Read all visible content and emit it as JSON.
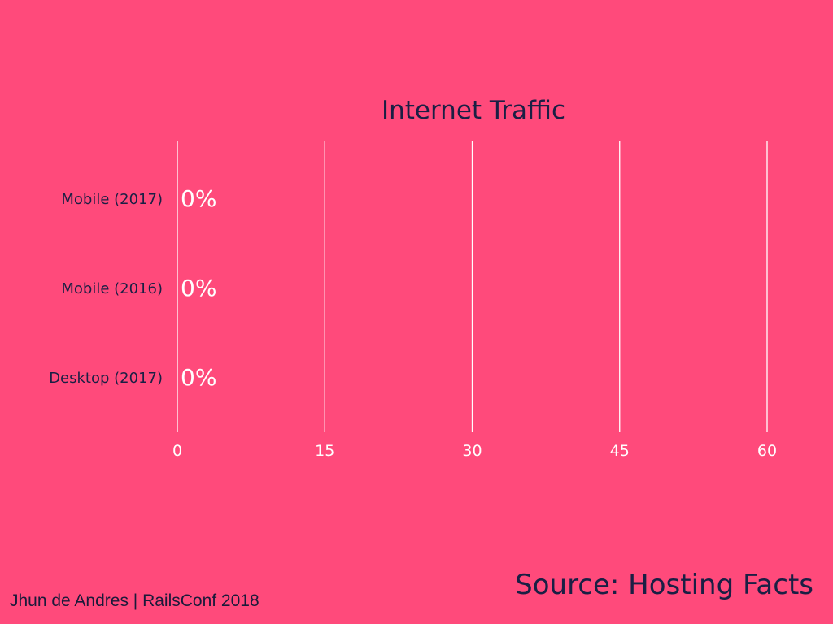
{
  "colors": {
    "background": "#ff4a7b",
    "title_text": "#1a1f44",
    "category_text": "#1a1f44",
    "value_label_text": "#ffffff",
    "tick_text": "#ffffff",
    "gridline": "#ffffff"
  },
  "footer": {
    "credit": "Jhun de Andres | RailsConf 2018",
    "source": "Source: Hosting Facts"
  },
  "chart_data": {
    "type": "bar",
    "orientation": "horizontal",
    "title": "Internet Traffic",
    "xlabel": "",
    "ylabel": "",
    "categories": [
      "Mobile (2017)",
      "Mobile (2016)",
      "Desktop (2017)"
    ],
    "values": [
      0,
      0,
      0
    ],
    "value_labels": [
      "0%",
      "0%",
      "0%"
    ],
    "xlim": [
      0,
      60
    ],
    "xticks": [
      0,
      15,
      30,
      45,
      60
    ],
    "grid": true,
    "legend": "none"
  }
}
